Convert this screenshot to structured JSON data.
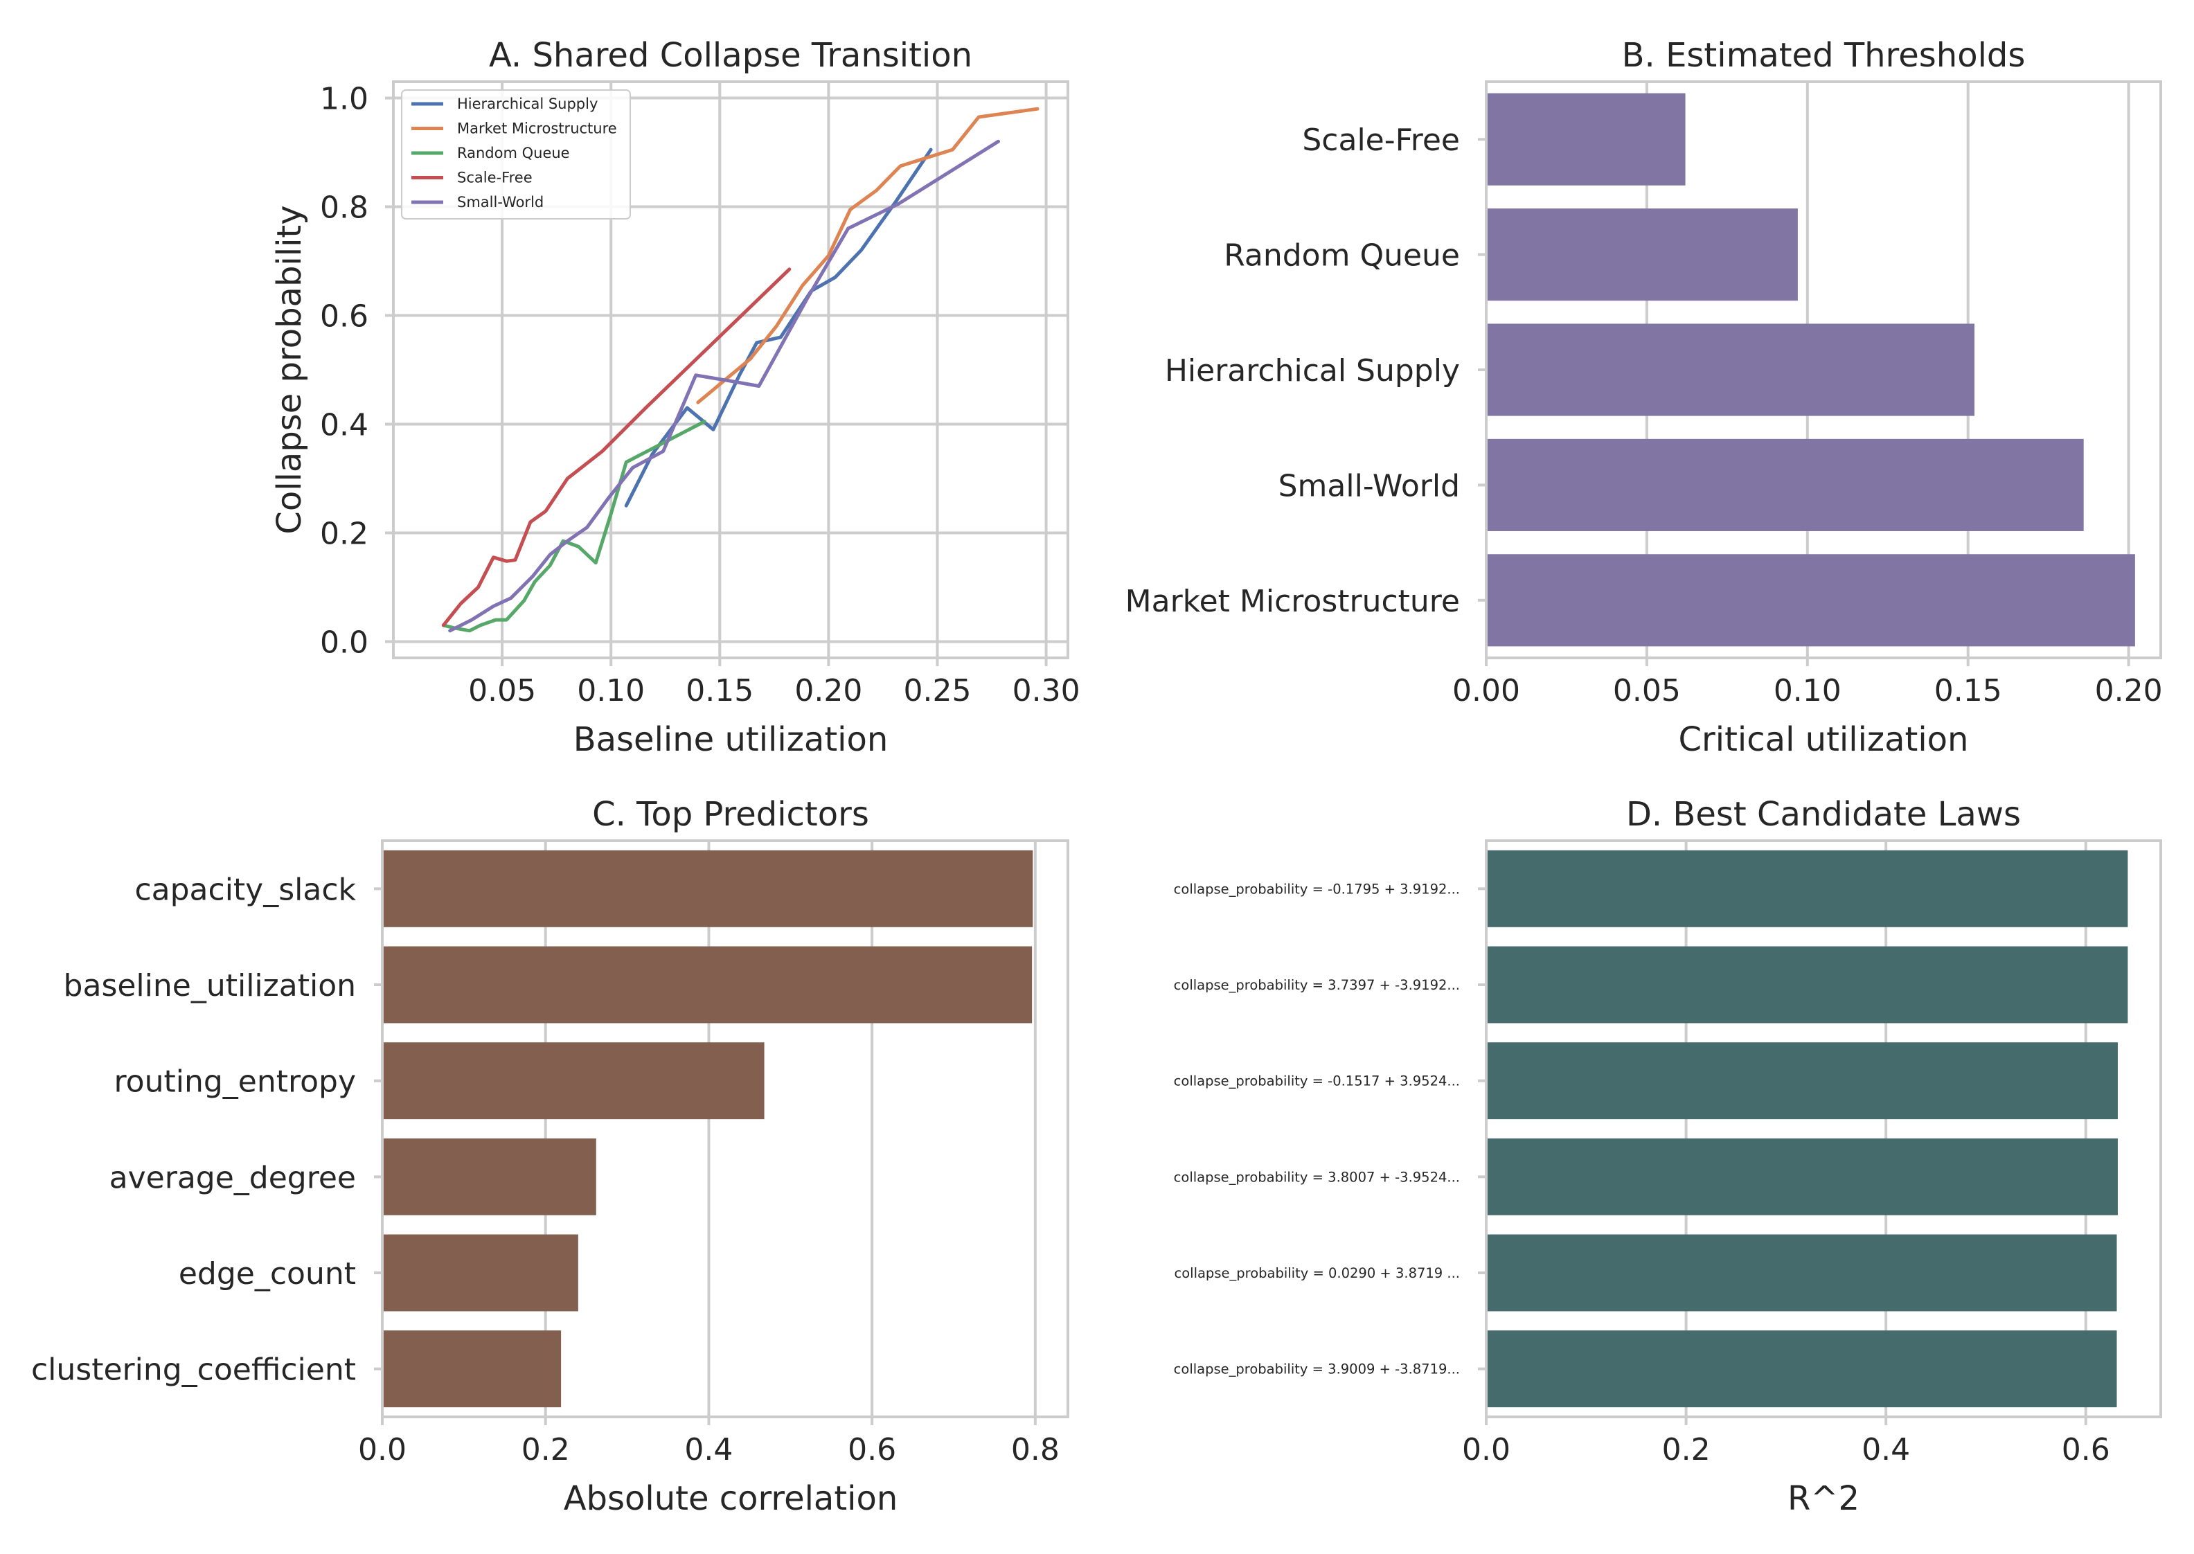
{
  "chart_data": [
    {
      "id": "A",
      "type": "line",
      "title": "A. Shared Collapse Transition",
      "xlabel": "Baseline utilization",
      "ylabel": "Collapse probability",
      "xlim": [
        0.0,
        0.31
      ],
      "ylim": [
        -0.03,
        1.03
      ],
      "xticks": [
        0.05,
        0.1,
        0.15,
        0.2,
        0.25,
        0.3
      ],
      "xtick_labels": [
        "0.05",
        "0.10",
        "0.15",
        "0.20",
        "0.25",
        "0.30"
      ],
      "yticks": [
        0.0,
        0.2,
        0.4,
        0.6,
        0.8,
        1.0
      ],
      "ytick_labels": [
        "0.0",
        "0.2",
        "0.4",
        "0.6",
        "0.8",
        "1.0"
      ],
      "grid": true,
      "legend_position": "top-left",
      "series": [
        {
          "name": "Hierarchical Supply",
          "color": "#4c72b0",
          "x": [
            0.107,
            0.119,
            0.135,
            0.147,
            0.159,
            0.167,
            0.178,
            0.192,
            0.203,
            0.215,
            0.231,
            0.247
          ],
          "y": [
            0.25,
            0.345,
            0.43,
            0.39,
            0.49,
            0.55,
            0.56,
            0.645,
            0.67,
            0.72,
            0.81,
            0.905
          ]
        },
        {
          "name": "Market Microstructure",
          "color": "#dd8452",
          "x": [
            0.14,
            0.152,
            0.164,
            0.176,
            0.188,
            0.2,
            0.21,
            0.222,
            0.233,
            0.245,
            0.257,
            0.269,
            0.296
          ],
          "y": [
            0.44,
            0.48,
            0.52,
            0.58,
            0.655,
            0.71,
            0.795,
            0.83,
            0.875,
            0.89,
            0.905,
            0.965,
            0.98
          ]
        },
        {
          "name": "Random Queue",
          "color": "#55a868",
          "x": [
            0.023,
            0.028,
            0.035,
            0.04,
            0.047,
            0.052,
            0.06,
            0.065,
            0.072,
            0.078,
            0.085,
            0.093,
            0.1,
            0.107,
            0.119,
            0.131,
            0.143
          ],
          "y": [
            0.03,
            0.025,
            0.02,
            0.03,
            0.04,
            0.04,
            0.075,
            0.11,
            0.14,
            0.185,
            0.175,
            0.145,
            0.235,
            0.33,
            0.355,
            0.38,
            0.405
          ]
        },
        {
          "name": "Scale-Free",
          "color": "#c44e52",
          "x": [
            0.023,
            0.031,
            0.039,
            0.046,
            0.052,
            0.056,
            0.063,
            0.07,
            0.08,
            0.096,
            0.116,
            0.182
          ],
          "y": [
            0.03,
            0.07,
            0.1,
            0.155,
            0.148,
            0.15,
            0.22,
            0.24,
            0.3,
            0.35,
            0.43,
            0.685
          ]
        },
        {
          "name": "Small-World",
          "color": "#8172b3",
          "x": [
            0.026,
            0.036,
            0.046,
            0.054,
            0.064,
            0.072,
            0.08,
            0.089,
            0.099,
            0.11,
            0.124,
            0.139,
            0.154,
            0.168,
            0.19,
            0.209,
            0.232,
            0.278
          ],
          "y": [
            0.02,
            0.04,
            0.065,
            0.08,
            0.12,
            0.16,
            0.185,
            0.21,
            0.265,
            0.32,
            0.35,
            0.49,
            0.48,
            0.47,
            0.63,
            0.76,
            0.805,
            0.92
          ]
        }
      ]
    },
    {
      "id": "B",
      "type": "bar",
      "orientation": "horizontal",
      "title": "B. Estimated Thresholds",
      "xlabel": "Critical utilization",
      "ylabel": "",
      "xlim": [
        0.0,
        0.21
      ],
      "xticks": [
        0.0,
        0.05,
        0.1,
        0.15,
        0.2
      ],
      "xtick_labels": [
        "0.00",
        "0.05",
        "0.10",
        "0.15",
        "0.20"
      ],
      "grid": true,
      "color": "#8175a3",
      "categories": [
        "Scale-Free",
        "Random Queue",
        "Hierarchical Supply",
        "Small-World",
        "Market Microstructure"
      ],
      "values": [
        0.062,
        0.097,
        0.152,
        0.186,
        0.202
      ]
    },
    {
      "id": "C",
      "type": "bar",
      "orientation": "horizontal",
      "title": "C. Top Predictors",
      "xlabel": "Absolute correlation",
      "ylabel": "",
      "xlim": [
        0.0,
        0.84
      ],
      "xticks": [
        0.0,
        0.2,
        0.4,
        0.6,
        0.8
      ],
      "xtick_labels": [
        "0.0",
        "0.2",
        "0.4",
        "0.6",
        "0.8"
      ],
      "grid": true,
      "color": "#825f4f",
      "categories": [
        "capacity_slack",
        "baseline_utilization",
        "routing_entropy",
        "average_degree",
        "edge_count",
        "clustering_coefficient"
      ],
      "values": [
        0.797,
        0.796,
        0.468,
        0.262,
        0.24,
        0.219
      ]
    },
    {
      "id": "D",
      "type": "bar",
      "orientation": "horizontal",
      "title": "D. Best Candidate Laws",
      "xlabel": "R^2",
      "ylabel": "",
      "xlim": [
        0.0,
        0.675
      ],
      "xticks": [
        0.0,
        0.2,
        0.4,
        0.6
      ],
      "xtick_labels": [
        "0.0",
        "0.2",
        "0.4",
        "0.6"
      ],
      "grid": true,
      "color": "#456b6d",
      "categories": [
        "collapse_probability = -0.1795 + 3.9192...",
        "collapse_probability = 3.7397 + -3.9192...",
        "collapse_probability = -0.1517 + 3.9524...",
        "collapse_probability = 3.8007 + -3.9524...",
        "collapse_probability = 0.0290 + 3.8719 ...",
        "collapse_probability = 3.9009 + -3.8719..."
      ],
      "values": [
        0.642,
        0.642,
        0.632,
        0.632,
        0.631,
        0.631
      ]
    }
  ]
}
